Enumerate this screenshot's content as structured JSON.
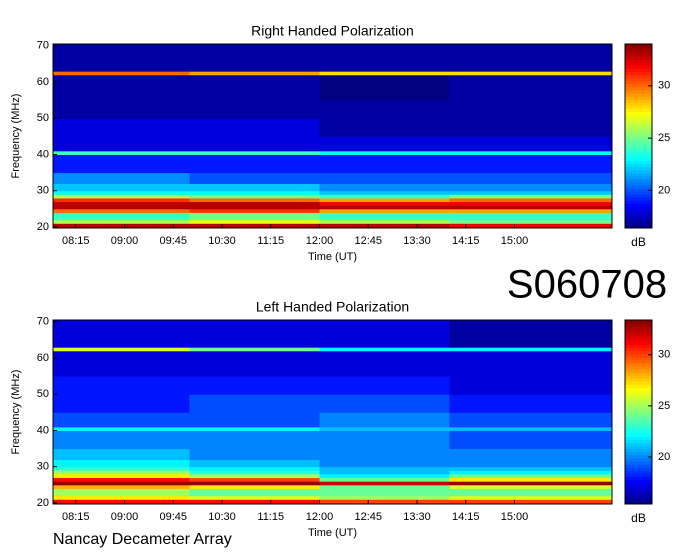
{
  "chart_data": [
    {
      "type": "heatmap",
      "title": "Right Handed Polarization",
      "xlabel": "Time (UT)",
      "ylabel": "Frequency (MHz)",
      "x": [
        7.9,
        10,
        12,
        14,
        16.5
      ],
      "y": [
        19.7,
        21,
        22,
        24,
        25,
        26,
        27,
        28,
        29,
        30,
        32,
        35,
        40,
        41,
        45,
        50,
        55,
        62,
        63,
        70.5
      ],
      "values": [
        [
          33,
          33,
          33,
          32
        ],
        [
          26,
          27,
          26,
          25
        ],
        [
          24,
          25,
          24,
          24
        ],
        [
          30,
          31,
          29,
          29
        ],
        [
          33,
          33,
          33,
          33
        ],
        [
          33,
          33,
          32,
          32
        ],
        [
          31,
          30,
          29,
          30
        ],
        [
          26,
          25,
          24,
          25
        ],
        [
          23,
          23,
          22,
          22
        ],
        [
          22,
          22,
          21,
          21
        ],
        [
          21,
          20,
          20,
          20
        ],
        [
          19,
          19,
          19,
          19
        ],
        [
          24,
          24,
          23,
          23
        ],
        [
          18,
          18,
          18,
          18
        ],
        [
          18,
          18,
          17,
          17
        ],
        [
          17,
          17,
          17,
          17
        ],
        [
          17,
          17,
          16,
          17
        ],
        [
          30,
          29,
          28,
          28
        ],
        [
          17,
          17,
          17,
          17
        ]
      ],
      "xlim": [
        7.9,
        16.5
      ],
      "ylim": [
        19.7,
        70.5
      ],
      "xticks": [
        {
          "value": 8.25,
          "label": "08:15"
        },
        {
          "value": 9,
          "label": "09:00"
        },
        {
          "value": 9.75,
          "label": "09:45"
        },
        {
          "value": 10.5,
          "label": "10:30"
        },
        {
          "value": 11.25,
          "label": "11:15"
        },
        {
          "value": 12,
          "label": "12:00"
        },
        {
          "value": 12.75,
          "label": "12:45"
        },
        {
          "value": 13.5,
          "label": "13:30"
        },
        {
          "value": 14.25,
          "label": "14:15"
        },
        {
          "value": 15,
          "label": "15:00"
        }
      ],
      "yticks": [
        20,
        30,
        40,
        50,
        60,
        70
      ],
      "zlim": [
        16.4,
        34
      ],
      "zticks": [
        20,
        25,
        30
      ],
      "colorbar_label": "dB",
      "colormap": "jet"
    },
    {
      "type": "heatmap",
      "title": "Left Handed Polarization",
      "xlabel": "Time (UT)",
      "ylabel": "Frequency (MHz)",
      "x": [
        7.9,
        10,
        12,
        14,
        16.5
      ],
      "y": [
        19.7,
        21,
        22,
        24,
        25,
        26,
        27,
        28,
        29,
        30,
        32,
        35,
        40,
        41,
        45,
        50,
        55,
        62,
        63,
        70.5
      ],
      "values": [
        [
          31,
          31,
          30,
          30
        ],
        [
          27,
          26,
          25,
          26
        ],
        [
          25,
          24,
          24,
          24
        ],
        [
          28,
          27,
          24,
          26
        ],
        [
          33,
          33,
          32,
          33
        ],
        [
          31,
          30,
          24,
          27
        ],
        [
          27,
          25,
          22,
          24
        ],
        [
          25,
          23,
          21,
          22
        ],
        [
          23,
          22,
          21,
          21
        ],
        [
          22,
          21,
          20,
          20
        ],
        [
          21,
          20,
          20,
          20
        ],
        [
          20,
          20,
          20,
          19
        ],
        [
          22,
          22,
          21,
          21
        ],
        [
          19,
          19,
          20,
          19
        ],
        [
          18,
          19,
          19,
          18
        ],
        [
          18,
          18,
          18,
          17
        ],
        [
          17,
          17,
          17,
          17
        ],
        [
          26,
          24,
          22,
          22
        ],
        [
          17,
          17,
          17,
          16
        ]
      ],
      "xlim": [
        7.9,
        16.5
      ],
      "ylim": [
        19.7,
        70.5
      ],
      "xticks": [
        {
          "value": 8.25,
          "label": "08:15"
        },
        {
          "value": 9,
          "label": "09:00"
        },
        {
          "value": 9.75,
          "label": "09:45"
        },
        {
          "value": 10.5,
          "label": "10:30"
        },
        {
          "value": 11.25,
          "label": "11:15"
        },
        {
          "value": 12,
          "label": "12:00"
        },
        {
          "value": 12.75,
          "label": "12:45"
        },
        {
          "value": 13.5,
          "label": "13:30"
        },
        {
          "value": 14.25,
          "label": "14:15"
        },
        {
          "value": 15,
          "label": "15:00"
        }
      ],
      "yticks": [
        20,
        30,
        40,
        50,
        60,
        70
      ],
      "zlim": [
        15.4,
        33.4
      ],
      "zticks": [
        20,
        25,
        30
      ],
      "colorbar_label": "dB",
      "colormap": "jet"
    }
  ],
  "label": "S060708",
  "footer": "Nancay Decameter Array"
}
